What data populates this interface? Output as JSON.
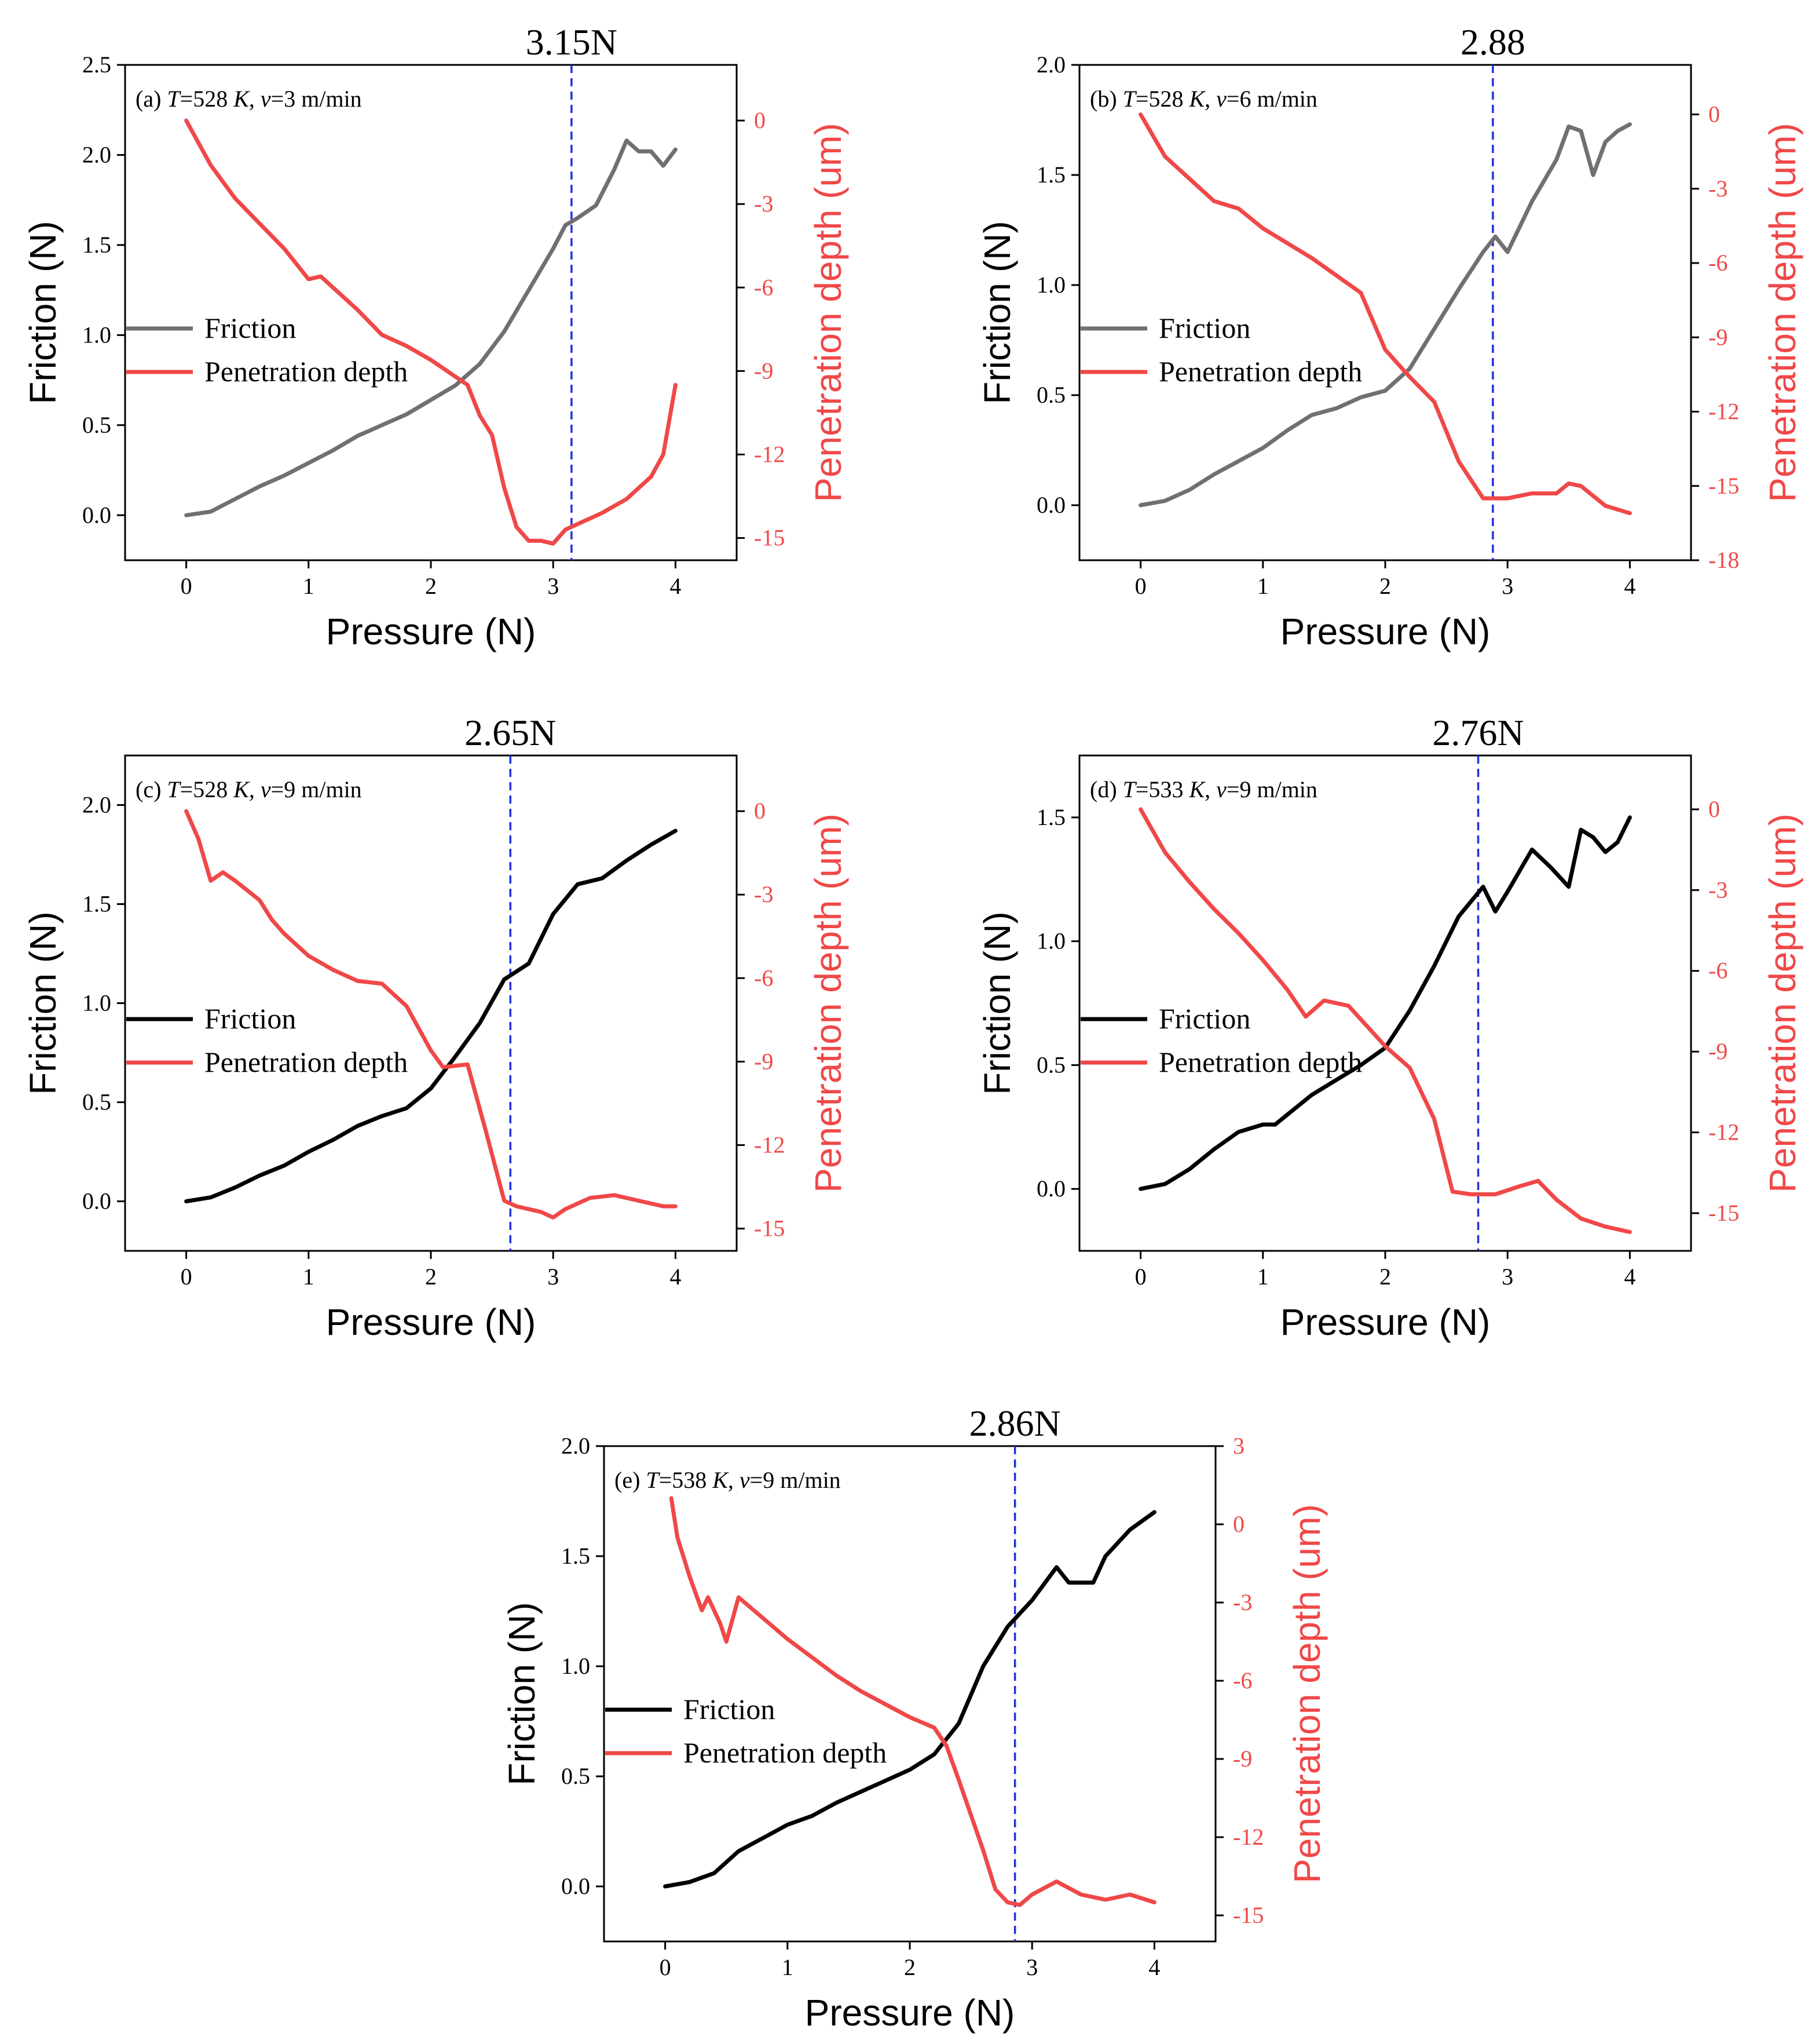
{
  "chart_data": [
    {
      "type": "line",
      "panel": "a",
      "title": "3.15N",
      "annotation": {
        "label": "(a)",
        "T": "T",
        "T_value": "=528 ",
        "K": "K",
        "sep": ", ",
        "v": "v",
        "v_value": "=3 m/min"
      },
      "xlabel": "Pressure (N)",
      "ylabel": "Friction (N)",
      "y2label": "Penetration depth (um)",
      "xlim": [
        -0.5,
        4.5
      ],
      "ylim": [
        -0.25,
        2.5
      ],
      "y2lim": [
        -15.8,
        2
      ],
      "xticks": [
        "0",
        "1",
        "2",
        "3",
        "4"
      ],
      "yticks": [
        "0.0",
        "0.5",
        "1.0",
        "1.5",
        "2.0",
        "2.5"
      ],
      "y2ticks": [
        "0",
        "-3",
        "-6",
        "-9",
        "-12",
        "-15"
      ],
      "vline": 3.15,
      "friction_color": "#707070",
      "series": [
        {
          "name": "Friction",
          "color": "#707070",
          "x": [
            0,
            0.2,
            0.4,
            0.6,
            0.8,
            1.0,
            1.2,
            1.4,
            1.6,
            1.8,
            2.0,
            2.2,
            2.4,
            2.6,
            2.8,
            3.0,
            3.1,
            3.2,
            3.35,
            3.5,
            3.6,
            3.7,
            3.8,
            3.9,
            4.0
          ],
          "y": [
            0,
            0.02,
            0.09,
            0.16,
            0.22,
            0.29,
            0.36,
            0.44,
            0.5,
            0.56,
            0.64,
            0.72,
            0.84,
            1.02,
            1.25,
            1.48,
            1.61,
            1.65,
            1.72,
            1.92,
            2.08,
            2.02,
            2.02,
            1.94,
            2.03
          ]
        },
        {
          "name": "Penetration depth",
          "color": "#f04848",
          "x": [
            0,
            0.2,
            0.4,
            0.6,
            0.8,
            1.0,
            1.1,
            1.2,
            1.4,
            1.6,
            1.8,
            2.0,
            2.2,
            2.3,
            2.4,
            2.5,
            2.6,
            2.7,
            2.8,
            2.9,
            3.0,
            3.1,
            3.2,
            3.4,
            3.6,
            3.8,
            3.9,
            4.0
          ],
          "y": [
            0,
            -1.6,
            -2.8,
            -3.7,
            -4.6,
            -5.7,
            -5.6,
            -6.0,
            -6.8,
            -7.7,
            -8.1,
            -8.6,
            -9.2,
            -9.5,
            -10.6,
            -11.3,
            -13.2,
            -14.6,
            -15.1,
            -15.1,
            -15.2,
            -14.7,
            -14.5,
            -14.1,
            -13.6,
            -12.8,
            -12.0,
            -9.5
          ]
        }
      ]
    },
    {
      "type": "line",
      "panel": "b",
      "title": "2.88",
      "annotation": {
        "label": "(b)",
        "T": "T",
        "T_value": "=528 ",
        "K": "K",
        "sep": ", ",
        "v": "v",
        "v_value": "=6 m/min"
      },
      "xlabel": "Pressure (N)",
      "ylabel": "Friction (N)",
      "y2label": "Penetration depth (um)",
      "xlim": [
        -0.5,
        4.5
      ],
      "ylim": [
        -0.25,
        2.0
      ],
      "y2lim": [
        -18,
        2
      ],
      "xticks": [
        "0",
        "1",
        "2",
        "3",
        "4"
      ],
      "yticks": [
        "0.0",
        "0.5",
        "1.0",
        "1.5",
        "2.0"
      ],
      "y2ticks": [
        "0",
        "-3",
        "-6",
        "-9",
        "-12",
        "-15",
        "-18"
      ],
      "vline": 2.88,
      "friction_color": "#707070",
      "series": [
        {
          "name": "Friction",
          "color": "#707070",
          "x": [
            0,
            0.2,
            0.4,
            0.6,
            0.8,
            1.0,
            1.2,
            1.4,
            1.6,
            1.8,
            2.0,
            2.2,
            2.4,
            2.6,
            2.8,
            2.9,
            3.0,
            3.2,
            3.4,
            3.5,
            3.6,
            3.7,
            3.8,
            3.9,
            4.0
          ],
          "y": [
            0,
            0.02,
            0.07,
            0.14,
            0.2,
            0.26,
            0.34,
            0.41,
            0.44,
            0.49,
            0.52,
            0.62,
            0.8,
            0.98,
            1.15,
            1.22,
            1.15,
            1.38,
            1.57,
            1.72,
            1.7,
            1.5,
            1.65,
            1.7,
            1.73
          ]
        },
        {
          "name": "Penetration depth",
          "color": "#f04848",
          "x": [
            0,
            0.2,
            0.4,
            0.6,
            0.8,
            1.0,
            1.2,
            1.4,
            1.6,
            1.8,
            2.0,
            2.2,
            2.4,
            2.6,
            2.8,
            3.0,
            3.2,
            3.4,
            3.5,
            3.6,
            3.8,
            4.0
          ],
          "y": [
            0,
            -1.7,
            -2.6,
            -3.5,
            -3.8,
            -4.6,
            -5.2,
            -5.8,
            -6.5,
            -7.2,
            -9.5,
            -10.6,
            -11.6,
            -14.0,
            -15.5,
            -15.5,
            -15.3,
            -15.3,
            -14.9,
            -15.0,
            -15.8,
            -16.1
          ]
        }
      ]
    },
    {
      "type": "line",
      "panel": "c",
      "title": "2.65N",
      "annotation": {
        "label": "(c)",
        "T": "T",
        "T_value": "=528 ",
        "K": "K",
        "sep": ", ",
        "v": "v",
        "v_value": "=9 m/min"
      },
      "xlabel": "Pressure (N)",
      "ylabel": "Friction (N)",
      "y2label": "Penetration depth (um)",
      "xlim": [
        -0.5,
        4.5
      ],
      "ylim": [
        -0.25,
        2.25
      ],
      "y2lim": [
        -15.8,
        2
      ],
      "xticks": [
        "0",
        "1",
        "2",
        "3",
        "4"
      ],
      "yticks": [
        "0.0",
        "0.5",
        "1.0",
        "1.5",
        "2.0"
      ],
      "y2ticks": [
        "0",
        "-3",
        "-6",
        "-9",
        "-12",
        "-15"
      ],
      "vline": 2.65,
      "friction_color": "#000000",
      "series": [
        {
          "name": "Friction",
          "color": "#000000",
          "x": [
            0,
            0.2,
            0.4,
            0.6,
            0.8,
            1.0,
            1.2,
            1.4,
            1.6,
            1.8,
            2.0,
            2.2,
            2.4,
            2.6,
            2.8,
            3.0,
            3.2,
            3.4,
            3.6,
            3.8,
            4.0
          ],
          "y": [
            0,
            0.02,
            0.07,
            0.13,
            0.18,
            0.25,
            0.31,
            0.38,
            0.43,
            0.47,
            0.57,
            0.73,
            0.9,
            1.12,
            1.2,
            1.45,
            1.6,
            1.63,
            1.72,
            1.8,
            1.87
          ]
        },
        {
          "name": "Penetration depth",
          "color": "#f04848",
          "x": [
            0,
            0.1,
            0.2,
            0.3,
            0.4,
            0.6,
            0.7,
            0.8,
            1.0,
            1.2,
            1.4,
            1.6,
            1.8,
            2.0,
            2.1,
            2.3,
            2.45,
            2.6,
            2.7,
            2.9,
            3.0,
            3.1,
            3.3,
            3.5,
            3.7,
            3.9,
            4.0
          ],
          "y": [
            0,
            -1.0,
            -2.5,
            -2.2,
            -2.5,
            -3.2,
            -3.9,
            -4.4,
            -5.2,
            -5.7,
            -6.1,
            -6.2,
            -7.0,
            -8.6,
            -9.2,
            -9.1,
            -11.5,
            -14.0,
            -14.2,
            -14.4,
            -14.6,
            -14.3,
            -13.9,
            -13.8,
            -14.0,
            -14.2,
            -14.2
          ]
        }
      ]
    },
    {
      "type": "line",
      "panel": "d",
      "title": "2.76N",
      "annotation": {
        "label": "(d)",
        "T": "T",
        "T_value": "=533 ",
        "K": "K",
        "sep": ", ",
        "v": "v",
        "v_value": "=9 m/min"
      },
      "xlabel": "Pressure (N)",
      "ylabel": "Friction (N)",
      "y2label": "Penetration depth (um)",
      "xlim": [
        -0.5,
        4.5
      ],
      "ylim": [
        -0.25,
        1.75
      ],
      "y2lim": [
        -16.4,
        2
      ],
      "xticks": [
        "0",
        "1",
        "2",
        "3",
        "4"
      ],
      "yticks": [
        "0.0",
        "0.5",
        "1.0",
        "1.5"
      ],
      "y2ticks": [
        "0",
        "-3",
        "-6",
        "-9",
        "-12",
        "-15"
      ],
      "vline": 2.76,
      "friction_color": "#000000",
      "series": [
        {
          "name": "Friction",
          "color": "#000000",
          "x": [
            0,
            0.2,
            0.4,
            0.6,
            0.8,
            1.0,
            1.1,
            1.2,
            1.4,
            1.6,
            1.8,
            2.0,
            2.2,
            2.4,
            2.6,
            2.8,
            2.9,
            3.0,
            3.2,
            3.35,
            3.5,
            3.6,
            3.7,
            3.8,
            3.9,
            4.0
          ],
          "y": [
            0,
            0.02,
            0.08,
            0.16,
            0.23,
            0.26,
            0.26,
            0.3,
            0.38,
            0.44,
            0.5,
            0.57,
            0.72,
            0.9,
            1.1,
            1.22,
            1.12,
            1.2,
            1.37,
            1.3,
            1.22,
            1.45,
            1.42,
            1.36,
            1.4,
            1.5
          ]
        },
        {
          "name": "Penetration depth",
          "color": "#f04848",
          "x": [
            0,
            0.2,
            0.4,
            0.6,
            0.8,
            1.0,
            1.2,
            1.35,
            1.5,
            1.7,
            1.8,
            2.0,
            2.2,
            2.4,
            2.55,
            2.7,
            2.9,
            3.1,
            3.25,
            3.4,
            3.6,
            3.8,
            4.0
          ],
          "y": [
            0,
            -1.6,
            -2.7,
            -3.7,
            -4.6,
            -5.6,
            -6.7,
            -7.7,
            -7.1,
            -7.3,
            -7.8,
            -8.8,
            -9.6,
            -11.5,
            -14.2,
            -14.3,
            -14.3,
            -14.0,
            -13.8,
            -14.5,
            -15.2,
            -15.5,
            -15.7
          ]
        }
      ]
    },
    {
      "type": "line",
      "panel": "e",
      "title": "2.86N",
      "annotation": {
        "label": "(e)",
        "T": "T",
        "T_value": "=538 ",
        "K": "K",
        "sep": ", ",
        "v": "v",
        "v_value": "=9 m/min"
      },
      "xlabel": "Pressure (N)",
      "ylabel": "Friction (N)",
      "y2label": "Penetration depth (um)",
      "xlim": [
        -0.5,
        4.5
      ],
      "ylim": [
        -0.25,
        2.0
      ],
      "y2lim": [
        -16,
        3
      ],
      "xticks": [
        "0",
        "1",
        "2",
        "3",
        "4"
      ],
      "yticks": [
        "0.0",
        "0.5",
        "1.0",
        "1.5",
        "2.0"
      ],
      "y2ticks": [
        "3",
        "0",
        "-3",
        "-6",
        "-9",
        "-12",
        "-15"
      ],
      "vline": 2.86,
      "friction_color": "#000000",
      "series": [
        {
          "name": "Friction",
          "color": "#000000",
          "x": [
            0,
            0.2,
            0.4,
            0.6,
            0.8,
            1.0,
            1.2,
            1.4,
            1.6,
            1.8,
            2.0,
            2.2,
            2.4,
            2.6,
            2.8,
            3.0,
            3.2,
            3.3,
            3.5,
            3.6,
            3.8,
            4.0
          ],
          "y": [
            0,
            0.02,
            0.06,
            0.16,
            0.22,
            0.28,
            0.32,
            0.38,
            0.43,
            0.48,
            0.53,
            0.6,
            0.74,
            1.0,
            1.18,
            1.3,
            1.45,
            1.38,
            1.38,
            1.5,
            1.62,
            1.7
          ]
        },
        {
          "name": "Penetration depth",
          "color": "#f04848",
          "x": [
            0.05,
            0.1,
            0.2,
            0.3,
            0.35,
            0.45,
            0.5,
            0.6,
            0.8,
            1.0,
            1.2,
            1.4,
            1.6,
            1.8,
            2.0,
            2.2,
            2.3,
            2.4,
            2.6,
            2.7,
            2.8,
            2.9,
            3.0,
            3.2,
            3.4,
            3.6,
            3.8,
            4.0
          ],
          "y": [
            1.0,
            -0.5,
            -2.0,
            -3.3,
            -2.8,
            -3.8,
            -4.5,
            -2.8,
            -3.6,
            -4.4,
            -5.1,
            -5.8,
            -6.4,
            -6.9,
            -7.4,
            -7.8,
            -8.5,
            -9.8,
            -12.5,
            -14.0,
            -14.5,
            -14.6,
            -14.2,
            -13.7,
            -14.2,
            -14.4,
            -14.2,
            -14.5
          ]
        }
      ]
    }
  ]
}
